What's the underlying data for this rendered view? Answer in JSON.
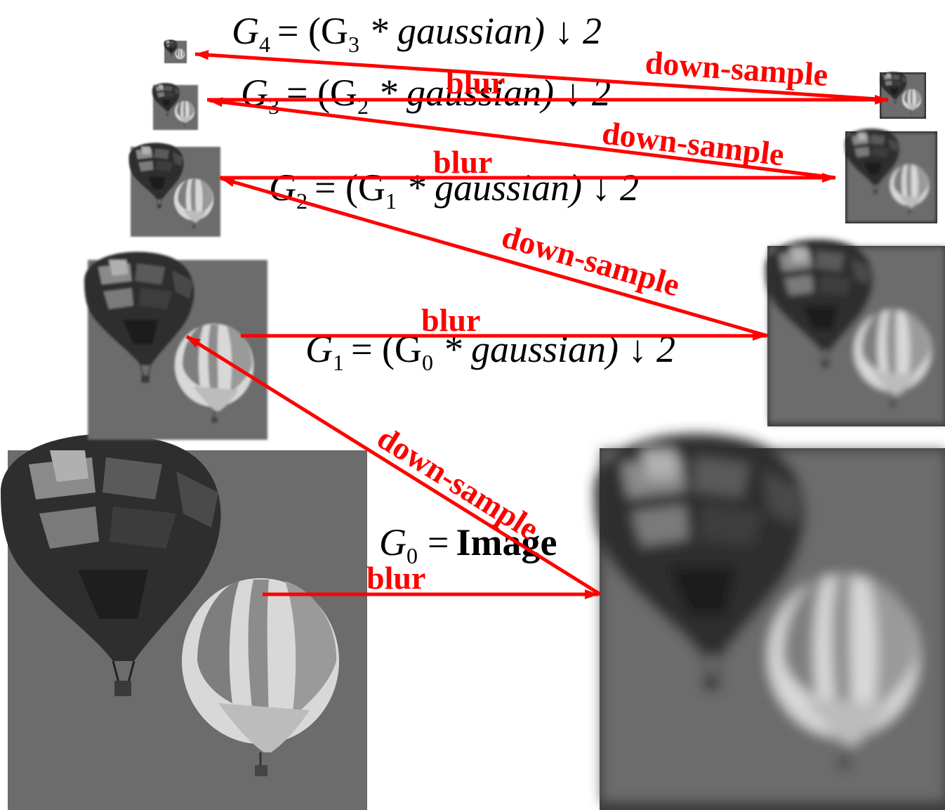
{
  "equations": {
    "g4": {
      "lhs": "G",
      "lhs_sub": "4",
      "rhs": "= (G",
      "rhs_sub": "3",
      "tail": " * gaussian) ↓ 2"
    },
    "g3": {
      "lhs": "G",
      "lhs_sub": "3",
      "rhs": "= (G",
      "rhs_sub": "2",
      "tail": " * gaussian) ↓ 2"
    },
    "g2": {
      "lhs": "G",
      "lhs_sub": "2",
      "rhs": "= (G",
      "rhs_sub": "1",
      "tail": " * gaussian) ↓ 2"
    },
    "g1": {
      "lhs": "G",
      "lhs_sub": "1",
      "rhs": "= (G",
      "rhs_sub": "0",
      "tail": " * gaussian) ↓ 2"
    },
    "g0": {
      "lhs": "G",
      "lhs_sub": "0",
      "eq": "=",
      "image": "Image"
    }
  },
  "labels": {
    "blur": "blur",
    "downsample": "down-sample"
  },
  "colors": {
    "arrow": "#ff0000",
    "sky": "#6e6e6e"
  }
}
